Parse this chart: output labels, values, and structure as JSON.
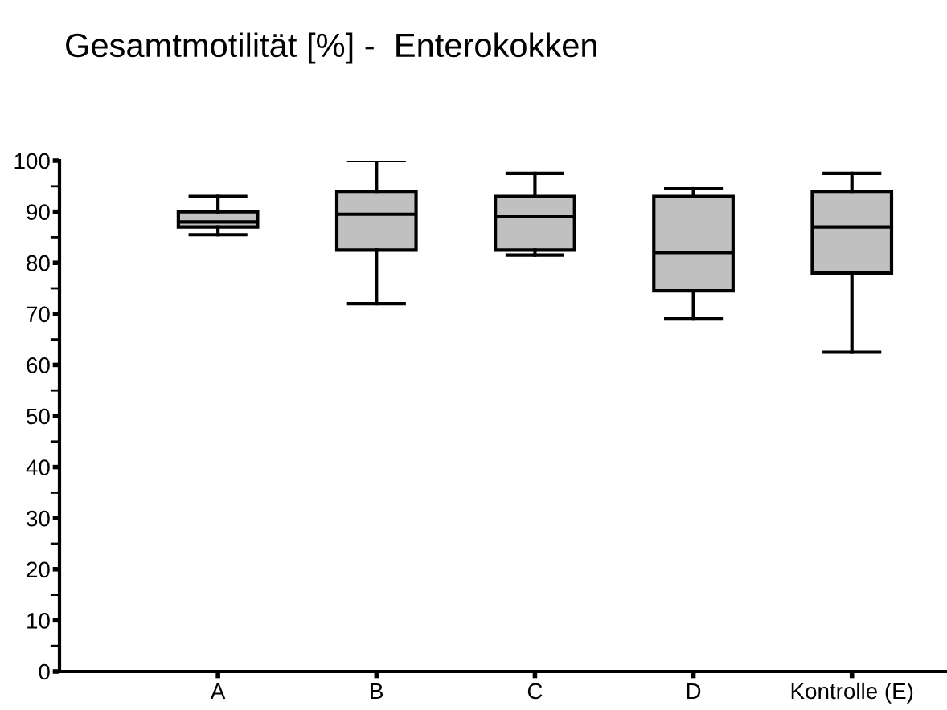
{
  "chart_data": {
    "type": "box",
    "title": "Gesamtmotilität [%] -  Enterokokken",
    "categories": [
      "A",
      "B",
      "C",
      "D",
      "Kontrolle (E)"
    ],
    "color": "#c0c0c0",
    "boxes": [
      {
        "low": 85.5,
        "q1": 87,
        "median": 88,
        "q3": 90,
        "high": 93
      },
      {
        "low": 72,
        "q1": 82.5,
        "median": 89.5,
        "q3": 94,
        "high": 100
      },
      {
        "low": 81.5,
        "q1": 82.5,
        "median": 89,
        "q3": 93,
        "high": 97.5
      },
      {
        "low": 69,
        "q1": 74.5,
        "median": 82,
        "q3": 93,
        "high": 94.5
      },
      {
        "low": 62.5,
        "q1": 78,
        "median": 87,
        "q3": 94,
        "high": 97.5
      }
    ],
    "ylim": [
      0,
      100
    ],
    "yticks": [
      0,
      10,
      20,
      30,
      40,
      50,
      60,
      70,
      80,
      90,
      100
    ],
    "grid": false
  }
}
